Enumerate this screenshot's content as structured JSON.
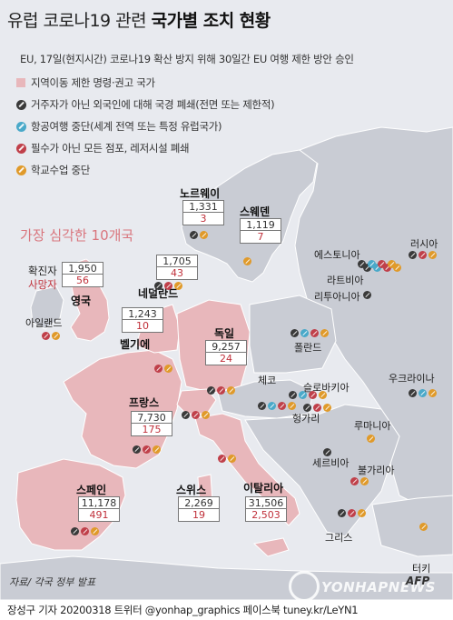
{
  "header": {
    "title_prefix": "유럽 코로나19 관련 ",
    "title_bold": "국가별 조치 현황",
    "subtitle": "EU, 17일(현지시간)  코로나19 확산 방지 위해 30일간 EU 여행 제한 방안 승인"
  },
  "legend": [
    {
      "type": "swatch",
      "label": "지역이동 제한 명령·권고 국가",
      "color": "#e8b7bb"
    },
    {
      "type": "black",
      "label": "거주자가 아닌 외국인에 대해 국경 폐쇄(전면 또는 제한적)"
    },
    {
      "type": "blue",
      "label": "항공여행 중단(세계 전역 또는 특정 유럽국가)"
    },
    {
      "type": "red",
      "label": "필수가 아닌 모든 점포, 레저시설 폐쇄"
    },
    {
      "type": "orange",
      "label": "학교수업 중단"
    }
  ],
  "top10_label": "가장 심각한 10개국",
  "key": {
    "cases_label": "확진자",
    "deaths_label": "사망자"
  },
  "countries": [
    {
      "id": "norway",
      "name": "노르웨이",
      "cases": "1,331",
      "deaths": "3",
      "icons": [
        "black",
        "orange"
      ]
    },
    {
      "id": "sweden",
      "name": "스웨덴",
      "cases": "1,119",
      "deaths": "7",
      "icons": [
        "orange"
      ]
    },
    {
      "id": "uk",
      "name": "영국",
      "cases": "1,950",
      "deaths": "56",
      "icons": []
    },
    {
      "id": "netherlands",
      "name": "네덜란드",
      "cases": "1,705",
      "deaths": "43",
      "icons": [
        "black",
        "red",
        "orange"
      ]
    },
    {
      "id": "belgium",
      "name": "벨기에",
      "cases": "1,243",
      "deaths": "10",
      "icons": [
        "red",
        "orange"
      ]
    },
    {
      "id": "germany",
      "name": "독일",
      "cases": "9,257",
      "deaths": "24",
      "icons": [
        "black",
        "red",
        "orange"
      ]
    },
    {
      "id": "france",
      "name": "프랑스",
      "cases": "7,730",
      "deaths": "175",
      "icons": [
        "black",
        "red",
        "orange"
      ]
    },
    {
      "id": "spain",
      "name": "스페인",
      "cases": "11,178",
      "deaths": "491",
      "icons": [
        "black",
        "red",
        "orange"
      ]
    },
    {
      "id": "switzerland",
      "name": "스위스",
      "cases": "2,269",
      "deaths": "19",
      "icons": [
        "black",
        "red",
        "orange"
      ]
    },
    {
      "id": "italy",
      "name": "이탈리아",
      "cases": "31,506",
      "deaths": "2,503",
      "icons": [
        "red",
        "orange"
      ]
    }
  ],
  "other_countries": [
    {
      "id": "russia",
      "name": "러시아",
      "icons": [
        "black",
        "red",
        "orange"
      ]
    },
    {
      "id": "estonia",
      "name": "에스토니아",
      "icons": [
        "black",
        "blue",
        "red",
        "orange"
      ]
    },
    {
      "id": "latvia",
      "name": "라트비아",
      "icons": [
        "black",
        "blue",
        "red",
        "orange"
      ]
    },
    {
      "id": "lithuania",
      "name": "리투아니아",
      "icons": [
        "black"
      ]
    },
    {
      "id": "ireland",
      "name": "아일랜드",
      "icons": [
        "red",
        "orange"
      ]
    },
    {
      "id": "poland",
      "name": "폴란드",
      "icons": [
        "black",
        "blue",
        "red",
        "orange"
      ]
    },
    {
      "id": "czech",
      "name": "체코",
      "icons": [
        "black",
        "blue",
        "red",
        "orange"
      ]
    },
    {
      "id": "slovakia",
      "name": "슬로바키아",
      "icons": [
        "black",
        "blue",
        "red",
        "orange"
      ]
    },
    {
      "id": "ukraine",
      "name": "우크라이나",
      "icons": [
        "black",
        "blue",
        "orange"
      ]
    },
    {
      "id": "hungary",
      "name": "헝가리",
      "icons": [
        "black",
        "red",
        "orange"
      ]
    },
    {
      "id": "romania",
      "name": "루마니아",
      "icons": [
        "orange"
      ]
    },
    {
      "id": "serbia",
      "name": "세르비아",
      "icons": [
        "black"
      ]
    },
    {
      "id": "bulgaria",
      "name": "불가리아",
      "icons": [
        "red",
        "orange"
      ]
    },
    {
      "id": "greece",
      "name": "그리스",
      "icons": [
        "black",
        "red",
        "orange"
      ]
    },
    {
      "id": "turkey",
      "name": "터키",
      "icons": [
        "orange"
      ]
    }
  ],
  "source": "자료/ 각국 정부 발표",
  "footer": "장성구 기자  20200318 트위터 @yonhap_graphics  페이스북 tuney.kr/LeYN1",
  "credit": "AFP",
  "watermark": "YONHAPNEWS",
  "colors": {
    "sea": "#e8eaef",
    "land": "#c9ccd4",
    "restricted": "#e8b7bb",
    "border": "#ffffff",
    "cases_text": "#333333",
    "deaths_text": "#c0303a",
    "black_icon": "#3a3a3a",
    "blue_icon": "#4aa9c9",
    "red_icon": "#c0404a",
    "orange_icon": "#e09a2a"
  }
}
